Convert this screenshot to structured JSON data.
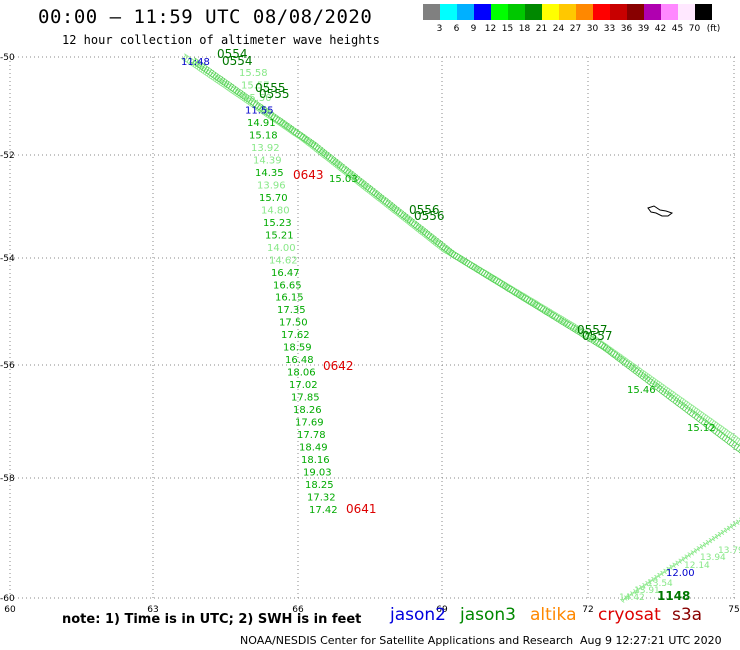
{
  "header": {
    "title": "00:00 – 11:59 UTC 08/08/2020",
    "subtitle": "12 hour collection of altimeter wave heights"
  },
  "legend": {
    "colors": [
      "#808080",
      "#00ffff",
      "#00b0ff",
      "#0000ff",
      "#00ff00",
      "#00c800",
      "#008800",
      "#ffff00",
      "#ffc800",
      "#ff8800",
      "#ff0000",
      "#c80000",
      "#880000",
      "#b000b0",
      "#ff88ff",
      "#ffe8ff",
      "#000000"
    ],
    "labels": [
      "3",
      "6",
      "9",
      "12",
      "15",
      "18",
      "21",
      "24",
      "27",
      "30",
      "33",
      "36",
      "39",
      "42",
      "45",
      "70",
      "(ft)"
    ]
  },
  "axes": {
    "lat_ticks": [
      "-50",
      "-52",
      "-54",
      "-56",
      "-58",
      "-60"
    ],
    "lon_ticks": [
      "60",
      "63",
      "66",
      "69",
      "72",
      "75"
    ]
  },
  "tracks": {
    "steep_values": [
      "15.58",
      "15.57",
      "15.50",
      "11.55",
      "14.91",
      "15.18",
      "13.92",
      "14.39",
      "14.35",
      "13.96",
      "15.70",
      "14.80",
      "15.23",
      "15.21",
      "14.00",
      "14.62",
      "16.47",
      "16.65",
      "16.15",
      "17.35",
      "17.50",
      "17.62",
      "18.59",
      "16.48",
      "18.06",
      "17.02",
      "17.85",
      "18.26",
      "17.69",
      "17.78",
      "18.49",
      "18.16",
      "19.03",
      "18.25",
      "17.32",
      "17.42"
    ],
    "steep_colors": [
      "#88e888",
      "#88e888",
      "#88e888",
      "#0000cc",
      "#00aa00",
      "#00aa00",
      "#88e888",
      "#88e888",
      "#00aa00",
      "#88e888",
      "#00aa00",
      "#88e888",
      "#00aa00",
      "#00aa00",
      "#88e888",
      "#88e888",
      "#00aa00",
      "#00aa00",
      "#00aa00",
      "#00aa00",
      "#00aa00",
      "#00aa00",
      "#00aa00",
      "#00aa00",
      "#00aa00",
      "#00aa00",
      "#00aa00",
      "#00aa00",
      "#00aa00",
      "#00aa00",
      "#00aa00",
      "#00aa00",
      "#00aa00",
      "#00aa00",
      "#00aa00",
      "#00aa00"
    ],
    "time_labels": [
      {
        "text": "0554",
        "color": "#007700"
      },
      {
        "text": "0554",
        "color": "#007700"
      },
      {
        "text": "11:48",
        "color": "#0000cc"
      },
      {
        "text": "0555",
        "color": "#007700"
      },
      {
        "text": "0555",
        "color": "#007700"
      },
      {
        "text": "0643",
        "color": "#dd0000"
      },
      {
        "text": "15.03",
        "color": "#00aa00"
      },
      {
        "text": "0556",
        "color": "#007700"
      },
      {
        "text": "0556",
        "color": "#007700"
      },
      {
        "text": "0557",
        "color": "#007700"
      },
      {
        "text": "0557",
        "color": "#007700"
      },
      {
        "text": "0642",
        "color": "#dd0000"
      },
      {
        "text": "15.46",
        "color": "#00aa00"
      },
      {
        "text": "15.12",
        "color": "#00aa00"
      },
      {
        "text": "0641",
        "color": "#dd0000"
      },
      {
        "text": "12.00",
        "color": "#0000cc"
      },
      {
        "text": "1148",
        "color": "#007700"
      },
      {
        "text": "13.79",
        "color": "#88e888"
      },
      {
        "text": "13.94",
        "color": "#88e888"
      },
      {
        "text": "12.14",
        "color": "#88e888"
      },
      {
        "text": "13.54",
        "color": "#88e888"
      },
      {
        "text": "14.42",
        "color": "#88e888"
      },
      {
        "text": "13.91",
        "color": "#88e888"
      }
    ]
  },
  "footer": {
    "note": "note: 1) Time is in UTC; 2) SWH is in feet",
    "satellites": [
      {
        "name": "jason2",
        "color": "#0000dd"
      },
      {
        "name": "jason3",
        "color": "#008800"
      },
      {
        "name": "altika",
        "color": "#ff8800"
      },
      {
        "name": "cryosat",
        "color": "#dd0000"
      },
      {
        "name": "s3a",
        "color": "#880000"
      }
    ],
    "credit": "NOAA/NESDIS Center for Satellite Applications and Research",
    "timestamp": "Aug  9 12:27:21 UTC 2020"
  }
}
